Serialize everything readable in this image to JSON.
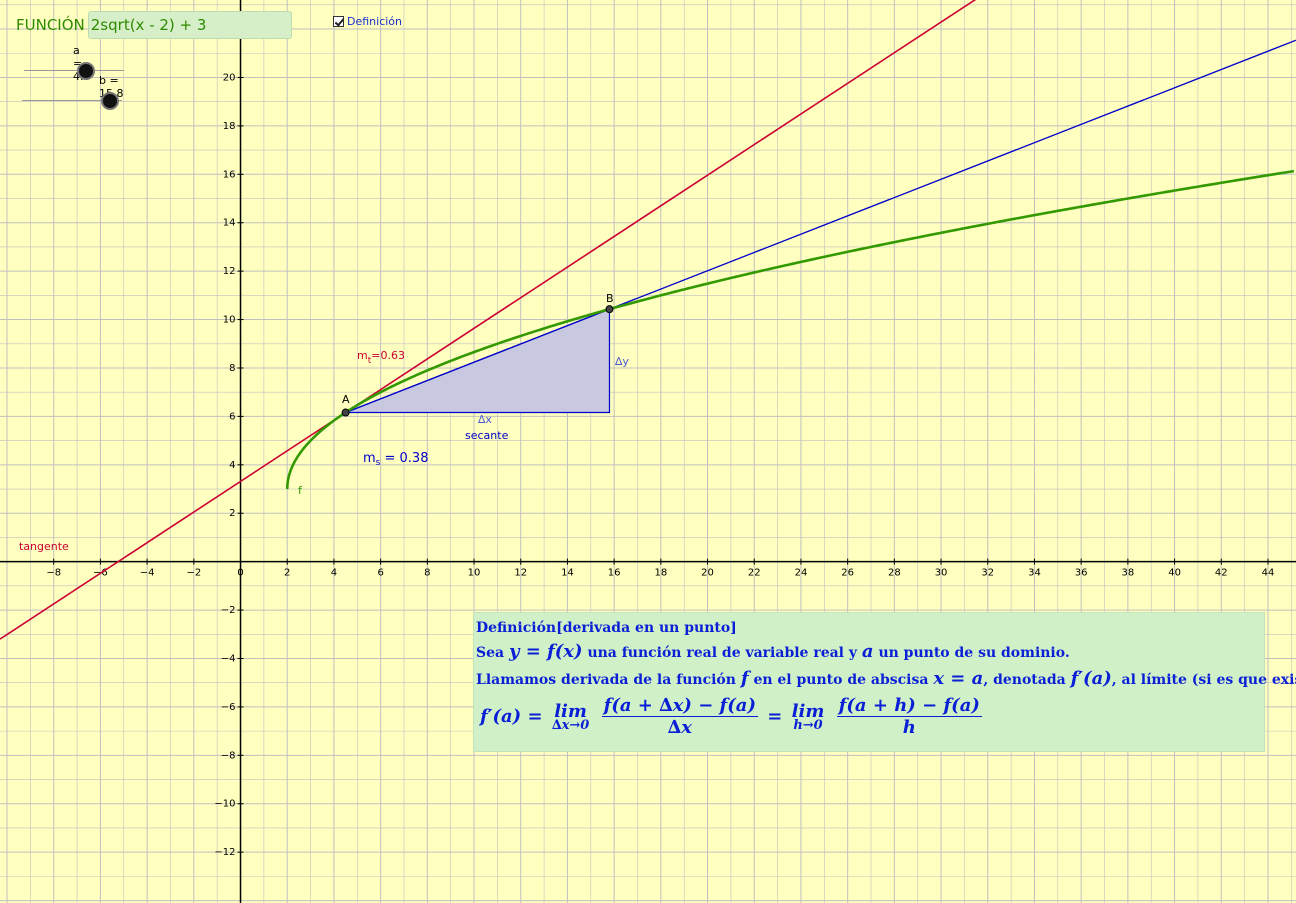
{
  "function_bar": {
    "label": "FUNCIÓN",
    "expression": "2sqrt(x - 2) + 3"
  },
  "definition_checkbox": {
    "label": "Definición",
    "checked": true
  },
  "sliders": [
    {
      "label": "a = 4.5",
      "value": 4.5
    },
    {
      "label": "b = 15.8",
      "value": 15.8
    }
  ],
  "graph_labels": {
    "point_a": "A",
    "point_b": "B",
    "curve_name": "f",
    "tangent_slope_prefix": "m",
    "tangent_slope_sub": "t",
    "tangent_slope_value": "=0.63",
    "secant_slope_prefix": "m",
    "secant_slope_sub": "s",
    "secant_slope_value": " = 0.38",
    "delta_x": "∆x",
    "delta_y": "∆y",
    "secant": "secante",
    "tangent": "tangente"
  },
  "colors": {
    "background": "#ffffc0",
    "grid": "#c0c0c0",
    "axes": "#000000",
    "function": "#339900",
    "tangent": "#cc0033",
    "secant": "#0000cc",
    "triangle_fill": "#c8c8e0"
  },
  "chart_data": {
    "type": "line",
    "axes": {
      "x_ticks": [
        -8,
        -6,
        -4,
        -2,
        0,
        2,
        4,
        6,
        8,
        10,
        12,
        14,
        16,
        18,
        20,
        22,
        24,
        26,
        28,
        30,
        32,
        34,
        36,
        38,
        40,
        42,
        44
      ],
      "y_ticks": [
        -12,
        -10,
        -8,
        -6,
        -4,
        -2,
        2,
        4,
        6,
        8,
        10,
        12,
        14,
        16,
        18,
        20
      ],
      "xlim": [
        -10.3,
        45.2
      ],
      "ylim": [
        -14.1,
        23.2
      ],
      "grid": true
    },
    "function": {
      "name": "f",
      "expression": "2sqrt(x - 2) + 3",
      "domain_start": 2
    },
    "point_a": {
      "x": 4.5,
      "y": 6.16
    },
    "point_b": {
      "x": 15.8,
      "y": 10.43
    },
    "tangent": {
      "slope": 0.63
    },
    "secant": {
      "slope": 0.38
    }
  },
  "definition": {
    "title": "Definición[derivada en un punto]",
    "line1": {
      "t1": "Sea",
      "m1": "y = f(x)",
      "t2": "una función real de variable real y",
      "m2": "a",
      "t3": "un punto de su dominio."
    },
    "line2": {
      "t1": "Llamamos derivada de la función",
      "m1": "f",
      "t2": "en el punto de abscisa",
      "m2": "x = a",
      "t3": ", denotada",
      "m3": "f′(a)",
      "t4": ", al límite  (si es que existe):"
    },
    "formula": {
      "lhs": "f′(a) =",
      "lim1": "lim",
      "lim1_sub": "∆x→0",
      "frac1_num": "f(a + ∆x) − f(a)",
      "frac1_den": "∆x",
      "eq": "=",
      "lim2": "lim",
      "lim2_sub": "h→0",
      "frac2_num": "f(a + h) − f(a)",
      "frac2_den": "h"
    }
  }
}
